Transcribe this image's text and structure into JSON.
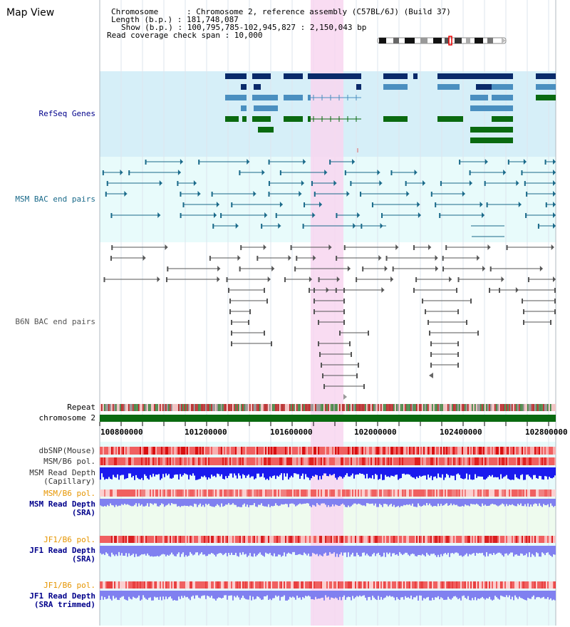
{
  "title": "Map View",
  "info": {
    "chromosome": "Chromosome      : Chromosome 2, reference assembly (C57BL/6J) (Build 37)",
    "length": "Length (b.p.) : 181,748,087",
    "show": "Show (b.p.) : 100,795,785-102,945,827 : 2,150,043 bp",
    "read_coverage": "Read coverage check span : 10,000"
  },
  "tracks": {
    "refseq": "RefSeq Genes",
    "msm_bac": "MSM BAC end pairs",
    "b6n_bac": "B6N BAC end pairs",
    "repeat": "Repeat",
    "chromosome": "chromosome 2",
    "dbsnp": "dbSNP(Mouse)",
    "msm_b6_pol": "MSM/B6 pol.",
    "msm_depth_cap_1": "MSM Read Depth",
    "msm_depth_cap_2": "(Capillary)",
    "msm_b6_pol_2": "MSM/B6 pol.",
    "msm_depth_sra_1": "MSM Read Depth",
    "msm_depth_sra_2": "(SRA)",
    "jf1_b6_pol": "JF1/B6 pol.",
    "jf1_depth_sra_1": "JF1 Read Depth",
    "jf1_depth_sra_2": "(SRA)",
    "jf1_b6_pol_2": "JF1/B6 pol.",
    "jf1_depth_trim_1": "JF1 Read Depth",
    "jf1_depth_trim_2": "(SRA trimmed)"
  },
  "axis_ticks": [
    "100800000",
    "101200000",
    "101600000",
    "102000000",
    "102400000",
    "102800000"
  ],
  "colors": {
    "refseq_bg": "#d6eff8",
    "bac_bg": "#e8fbfb",
    "highlight": "#f8d6f0",
    "gene_dark": "#0a2a6a",
    "gene_mid": "#4a8fc0",
    "gene_green": "#0a6a10",
    "msm_line": "#1a6a8a",
    "b6n_line": "#555555",
    "depth_blue": "#1a1aee",
    "depth_light": "#8080f0",
    "label_blue": "#00008b",
    "label_teal": "#1a6a8a",
    "label_gray": "#555555",
    "label_orange": "#e69500"
  }
}
